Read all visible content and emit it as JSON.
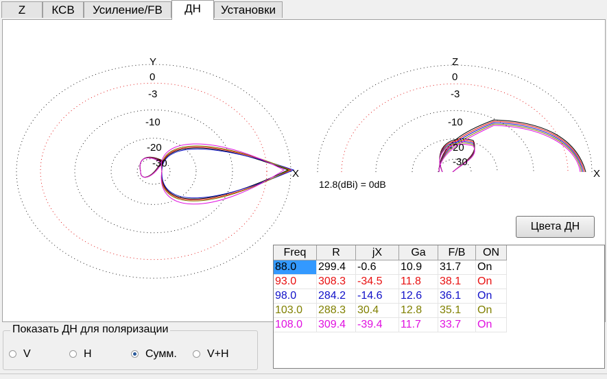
{
  "tabs": [
    "Z",
    "КСВ",
    "Усиление/FB",
    "ДН",
    "Установки"
  ],
  "active_tab": "ДН",
  "azimuth": {
    "axis_y": "Y",
    "axis_x": "X",
    "rings": [
      "0",
      "-3",
      "-10",
      "-20",
      "-30"
    ]
  },
  "elevation": {
    "axis_z": "Z",
    "axis_x": "X",
    "rings": [
      "0",
      "-3",
      "-10",
      "-20",
      "-30"
    ]
  },
  "reference_label": "12.8(dBi) = 0dB",
  "colors_button": "Цвета ДН",
  "table": {
    "headers": [
      "Freq",
      "R",
      "jX",
      "Ga",
      "F/B",
      "ON"
    ],
    "rows": [
      {
        "color": "#000000",
        "cells": [
          "88.0",
          "299.4",
          "-0.6",
          "10.9",
          "31.7",
          "On"
        ]
      },
      {
        "color": "#e81010",
        "cells": [
          "93.0",
          "308.3",
          "-34.5",
          "11.8",
          "38.1",
          "On"
        ]
      },
      {
        "color": "#1010c8",
        "cells": [
          "98.0",
          "284.2",
          "-14.6",
          "12.6",
          "36.1",
          "On"
        ]
      },
      {
        "color": "#808000",
        "cells": [
          "103.0",
          "288.3",
          "30.4",
          "12.8",
          "35.1",
          "On"
        ]
      },
      {
        "color": "#e010e0",
        "cells": [
          "108.0",
          "309.4",
          "-39.4",
          "11.7",
          "33.7",
          "On"
        ]
      }
    ]
  },
  "polarization": {
    "title": "Показать ДН для поляризации",
    "options": [
      "V",
      "H",
      "Сумм.",
      "V+H"
    ],
    "selected": "Сумм."
  },
  "colors": {
    "selected_cell": "#3399ff",
    "grid_ring": "#000000",
    "ref_ring": "#e00000"
  }
}
